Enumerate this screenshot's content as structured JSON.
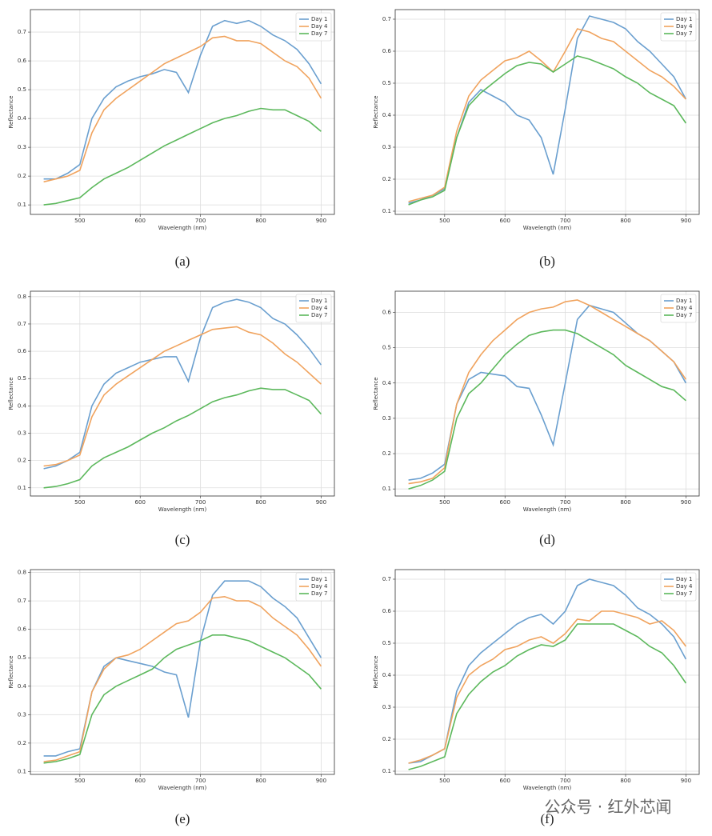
{
  "chart_data": [
    {
      "type": "line",
      "caption": "(a)",
      "xlabel": "Wavelength (nm)",
      "ylabel": "Reflectance",
      "grid": true,
      "legend": "upper right",
      "x": [
        440,
        460,
        480,
        500,
        520,
        540,
        560,
        580,
        600,
        620,
        640,
        660,
        680,
        700,
        720,
        740,
        760,
        780,
        800,
        820,
        840,
        860,
        880,
        900
      ],
      "xlim": [
        418,
        922
      ],
      "xticks": [
        500,
        600,
        700,
        800,
        900
      ],
      "ylim": [
        0.067,
        0.778
      ],
      "yticks": [
        0.1,
        0.2,
        0.3,
        0.4,
        0.5,
        0.6,
        0.7
      ],
      "series": [
        {
          "name": "Day 1",
          "color": "#6a9fcf",
          "values": [
            0.19,
            0.19,
            0.21,
            0.24,
            0.4,
            0.47,
            0.51,
            0.53,
            0.545,
            0.555,
            0.57,
            0.56,
            0.49,
            0.62,
            0.72,
            0.74,
            0.73,
            0.74,
            0.72,
            0.69,
            0.67,
            0.64,
            0.59,
            0.52
          ]
        },
        {
          "name": "Day 4",
          "color": "#f0a35e",
          "values": [
            0.18,
            0.19,
            0.2,
            0.22,
            0.35,
            0.43,
            0.47,
            0.5,
            0.53,
            0.56,
            0.59,
            0.61,
            0.63,
            0.65,
            0.68,
            0.685,
            0.67,
            0.67,
            0.66,
            0.63,
            0.6,
            0.58,
            0.54,
            0.47
          ]
        },
        {
          "name": "Day 7",
          "color": "#5cb85c",
          "values": [
            0.1,
            0.105,
            0.115,
            0.125,
            0.16,
            0.19,
            0.21,
            0.23,
            0.255,
            0.28,
            0.305,
            0.325,
            0.345,
            0.365,
            0.385,
            0.4,
            0.41,
            0.425,
            0.435,
            0.43,
            0.43,
            0.41,
            0.39,
            0.355
          ]
        }
      ]
    },
    {
      "type": "line",
      "caption": "(b)",
      "xlabel": "Wavelength (nm)",
      "ylabel": "Reflectance",
      "grid": true,
      "legend": "upper right",
      "x": [
        440,
        460,
        480,
        500,
        520,
        540,
        560,
        580,
        600,
        620,
        640,
        660,
        680,
        700,
        720,
        740,
        760,
        780,
        800,
        820,
        840,
        860,
        880,
        900
      ],
      "xlim": [
        418,
        922
      ],
      "xticks": [
        500,
        600,
        700,
        800,
        900
      ],
      "ylim": [
        0.09,
        0.73
      ],
      "yticks": [
        0.1,
        0.2,
        0.3,
        0.4,
        0.5,
        0.6,
        0.7
      ],
      "series": [
        {
          "name": "Day 1",
          "color": "#6a9fcf",
          "values": [
            0.125,
            0.135,
            0.15,
            0.17,
            0.33,
            0.44,
            0.48,
            0.46,
            0.44,
            0.4,
            0.385,
            0.33,
            0.215,
            0.42,
            0.64,
            0.71,
            0.7,
            0.69,
            0.67,
            0.63,
            0.6,
            0.56,
            0.52,
            0.45
          ]
        },
        {
          "name": "Day 4",
          "color": "#f0a35e",
          "values": [
            0.13,
            0.14,
            0.15,
            0.175,
            0.35,
            0.46,
            0.51,
            0.54,
            0.57,
            0.58,
            0.6,
            0.57,
            0.535,
            0.6,
            0.67,
            0.66,
            0.64,
            0.63,
            0.6,
            0.57,
            0.54,
            0.52,
            0.49,
            0.45
          ]
        },
        {
          "name": "Day 7",
          "color": "#5cb85c",
          "values": [
            0.12,
            0.135,
            0.145,
            0.165,
            0.33,
            0.43,
            0.47,
            0.5,
            0.53,
            0.555,
            0.565,
            0.56,
            0.535,
            0.56,
            0.585,
            0.575,
            0.56,
            0.545,
            0.52,
            0.5,
            0.47,
            0.45,
            0.43,
            0.375
          ]
        }
      ]
    },
    {
      "type": "line",
      "caption": "(c)",
      "xlabel": "Wavelength (nm)",
      "ylabel": "Reflectance",
      "grid": true,
      "legend": "upper right",
      "x": [
        440,
        460,
        480,
        500,
        520,
        540,
        560,
        580,
        600,
        620,
        640,
        660,
        680,
        700,
        720,
        740,
        760,
        780,
        800,
        820,
        840,
        860,
        880,
        900
      ],
      "xlim": [
        418,
        922
      ],
      "xticks": [
        500,
        600,
        700,
        800,
        900
      ],
      "ylim": [
        0.07,
        0.82
      ],
      "yticks": [
        0.1,
        0.2,
        0.3,
        0.4,
        0.5,
        0.6,
        0.7,
        0.8
      ],
      "series": [
        {
          "name": "Day 1",
          "color": "#6a9fcf",
          "values": [
            0.17,
            0.18,
            0.2,
            0.23,
            0.4,
            0.48,
            0.52,
            0.54,
            0.56,
            0.57,
            0.58,
            0.58,
            0.49,
            0.65,
            0.76,
            0.78,
            0.79,
            0.78,
            0.76,
            0.72,
            0.7,
            0.66,
            0.61,
            0.55
          ]
        },
        {
          "name": "Day 4",
          "color": "#f0a35e",
          "values": [
            0.18,
            0.185,
            0.2,
            0.22,
            0.36,
            0.44,
            0.48,
            0.51,
            0.54,
            0.57,
            0.6,
            0.62,
            0.64,
            0.66,
            0.68,
            0.685,
            0.69,
            0.67,
            0.66,
            0.63,
            0.59,
            0.56,
            0.52,
            0.48
          ]
        },
        {
          "name": "Day 7",
          "color": "#5cb85c",
          "values": [
            0.1,
            0.105,
            0.115,
            0.13,
            0.18,
            0.21,
            0.23,
            0.25,
            0.275,
            0.3,
            0.32,
            0.345,
            0.365,
            0.39,
            0.415,
            0.43,
            0.44,
            0.455,
            0.465,
            0.46,
            0.46,
            0.44,
            0.42,
            0.37
          ]
        }
      ]
    },
    {
      "type": "line",
      "caption": "(d)",
      "xlabel": "Wavelength (nm)",
      "ylabel": "Reflectance",
      "grid": true,
      "legend": "upper right",
      "x": [
        440,
        460,
        480,
        500,
        520,
        540,
        560,
        580,
        600,
        620,
        640,
        660,
        680,
        700,
        720,
        740,
        760,
        780,
        800,
        820,
        840,
        860,
        880,
        900
      ],
      "xlim": [
        418,
        922
      ],
      "xticks": [
        500,
        600,
        700,
        800,
        900
      ],
      "ylim": [
        0.08,
        0.66
      ],
      "yticks": [
        0.1,
        0.2,
        0.3,
        0.4,
        0.5,
        0.6
      ],
      "series": [
        {
          "name": "Day 1",
          "color": "#6a9fcf",
          "values": [
            0.125,
            0.13,
            0.145,
            0.17,
            0.34,
            0.41,
            0.43,
            0.425,
            0.42,
            0.39,
            0.385,
            0.31,
            0.225,
            0.4,
            0.58,
            0.62,
            0.61,
            0.6,
            0.57,
            0.54,
            0.52,
            0.49,
            0.46,
            0.4
          ]
        },
        {
          "name": "Day 4",
          "color": "#f0a35e",
          "values": [
            0.115,
            0.12,
            0.13,
            0.16,
            0.34,
            0.43,
            0.48,
            0.52,
            0.55,
            0.58,
            0.6,
            0.61,
            0.615,
            0.63,
            0.635,
            0.62,
            0.6,
            0.58,
            0.56,
            0.54,
            0.52,
            0.49,
            0.46,
            0.41
          ]
        },
        {
          "name": "Day 7",
          "color": "#5cb85c",
          "values": [
            0.1,
            0.11,
            0.125,
            0.15,
            0.3,
            0.37,
            0.4,
            0.44,
            0.48,
            0.51,
            0.535,
            0.545,
            0.55,
            0.55,
            0.54,
            0.52,
            0.5,
            0.48,
            0.45,
            0.43,
            0.41,
            0.39,
            0.38,
            0.35
          ]
        }
      ]
    },
    {
      "type": "line",
      "caption": "(e)",
      "xlabel": "Wavelength (nm)",
      "ylabel": "Reflectance",
      "grid": true,
      "legend": "upper right",
      "x": [
        440,
        460,
        480,
        500,
        520,
        540,
        560,
        580,
        600,
        620,
        640,
        660,
        680,
        700,
        720,
        740,
        760,
        780,
        800,
        820,
        840,
        860,
        880,
        900
      ],
      "xlim": [
        418,
        922
      ],
      "xticks": [
        500,
        600,
        700,
        800,
        900
      ],
      "ylim": [
        0.09,
        0.81
      ],
      "yticks": [
        0.1,
        0.2,
        0.3,
        0.4,
        0.5,
        0.6,
        0.7,
        0.8
      ],
      "series": [
        {
          "name": "Day 1",
          "color": "#6a9fcf",
          "values": [
            0.155,
            0.155,
            0.17,
            0.18,
            0.38,
            0.47,
            0.5,
            0.49,
            0.48,
            0.47,
            0.45,
            0.44,
            0.29,
            0.56,
            0.72,
            0.77,
            0.77,
            0.77,
            0.75,
            0.71,
            0.68,
            0.64,
            0.57,
            0.5
          ]
        },
        {
          "name": "Day 4",
          "color": "#f0a35e",
          "values": [
            0.135,
            0.14,
            0.155,
            0.17,
            0.38,
            0.46,
            0.5,
            0.51,
            0.53,
            0.56,
            0.59,
            0.62,
            0.63,
            0.66,
            0.71,
            0.715,
            0.7,
            0.7,
            0.68,
            0.64,
            0.61,
            0.58,
            0.53,
            0.47
          ]
        },
        {
          "name": "Day 7",
          "color": "#5cb85c",
          "values": [
            0.13,
            0.135,
            0.145,
            0.16,
            0.3,
            0.37,
            0.4,
            0.42,
            0.44,
            0.46,
            0.5,
            0.53,
            0.545,
            0.56,
            0.58,
            0.58,
            0.57,
            0.56,
            0.54,
            0.52,
            0.5,
            0.47,
            0.44,
            0.39
          ]
        }
      ]
    },
    {
      "type": "line",
      "caption": "(f)",
      "xlabel": "Wavelength (nm)",
      "ylabel": "Reflectance",
      "grid": true,
      "legend": "upper right",
      "x": [
        440,
        460,
        480,
        500,
        520,
        540,
        560,
        580,
        600,
        620,
        640,
        660,
        680,
        700,
        720,
        740,
        760,
        780,
        800,
        820,
        840,
        860,
        880,
        900
      ],
      "xlim": [
        418,
        922
      ],
      "xticks": [
        500,
        600,
        700,
        800,
        900
      ],
      "ylim": [
        0.09,
        0.73
      ],
      "yticks": [
        0.1,
        0.2,
        0.3,
        0.4,
        0.5,
        0.6,
        0.7
      ],
      "series": [
        {
          "name": "Day 1",
          "color": "#6a9fcf",
          "values": [
            0.125,
            0.13,
            0.15,
            0.17,
            0.35,
            0.43,
            0.47,
            0.5,
            0.53,
            0.56,
            0.58,
            0.59,
            0.56,
            0.6,
            0.68,
            0.7,
            0.69,
            0.68,
            0.65,
            0.61,
            0.59,
            0.56,
            0.52,
            0.45
          ]
        },
        {
          "name": "Day 4",
          "color": "#f0a35e",
          "values": [
            0.125,
            0.135,
            0.15,
            0.17,
            0.33,
            0.4,
            0.43,
            0.45,
            0.48,
            0.49,
            0.51,
            0.52,
            0.5,
            0.53,
            0.575,
            0.57,
            0.6,
            0.6,
            0.59,
            0.58,
            0.56,
            0.57,
            0.54,
            0.49
          ]
        },
        {
          "name": "Day 7",
          "color": "#5cb85c",
          "values": [
            0.105,
            0.115,
            0.13,
            0.145,
            0.28,
            0.34,
            0.38,
            0.41,
            0.43,
            0.46,
            0.48,
            0.495,
            0.49,
            0.51,
            0.56,
            0.56,
            0.56,
            0.56,
            0.54,
            0.52,
            0.49,
            0.47,
            0.43,
            0.375
          ]
        }
      ]
    }
  ],
  "watermark": "公众号 · 红外芯闻"
}
